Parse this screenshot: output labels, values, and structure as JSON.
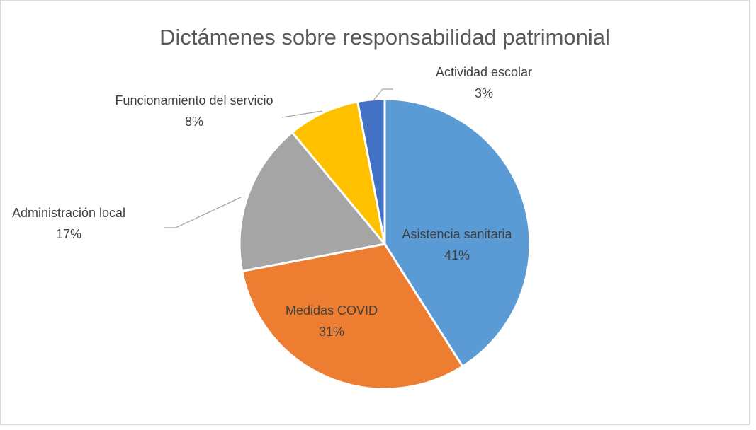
{
  "chart_data": {
    "type": "pie",
    "title": "Dictámenes sobre responsabilidad patrimonial",
    "categories": [
      "Asistencia sanitaria",
      "Medidas COVID",
      "Administración local",
      "Funcionamiento del servicio",
      "Actividad escolar"
    ],
    "values": [
      41,
      31,
      17,
      8,
      3
    ],
    "value_labels": [
      "41%",
      "31%",
      "17%",
      "8%",
      "3%"
    ],
    "colors": [
      "#5b9bd5",
      "#ed7d31",
      "#a5a5a5",
      "#ffc000",
      "#4472c4"
    ]
  }
}
